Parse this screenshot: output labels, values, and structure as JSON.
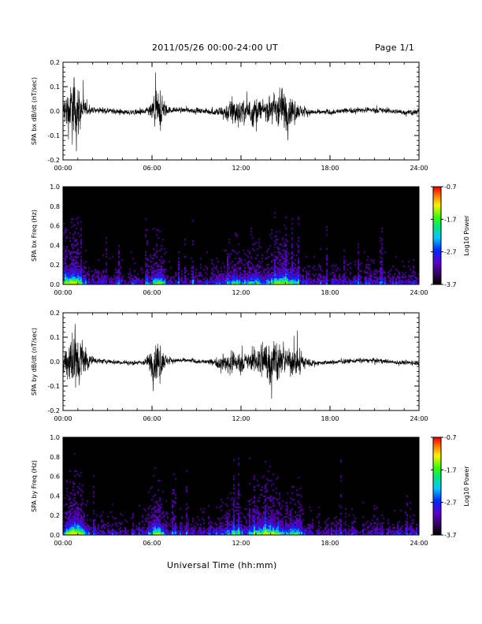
{
  "header": {
    "title": "2011/05/26  00:00-24:00 UT",
    "page": "Page 1/1"
  },
  "xaxis_label": "Universal Time (hh:mm)",
  "chart_data": [
    {
      "type": "line",
      "ylabel": "SPA bx dB/dt (nT/sec)",
      "ylim": [
        -0.2,
        0.2
      ],
      "yticks": [
        "-0.2",
        "-0.1",
        "0.0",
        "0.1",
        "0.2"
      ],
      "xticks": [
        "00:00",
        "06:00",
        "12:00",
        "18:00",
        "24:00"
      ],
      "xlim_hours": [
        0,
        24
      ],
      "activity_bursts_hours": [
        {
          "center": 0.7,
          "width": 0.6,
          "amp": 0.3
        },
        {
          "center": 6.4,
          "width": 0.45,
          "amp": 0.17
        },
        {
          "center": 11.7,
          "width": 0.9,
          "amp": 0.12
        },
        {
          "center": 12.9,
          "width": 0.7,
          "amp": 0.12
        },
        {
          "center": 14.7,
          "width": 1.0,
          "amp": 0.2
        }
      ],
      "baseline_amp": 0.025
    },
    {
      "type": "heatmap",
      "ylabel": "SPA bx Freq (Hz)",
      "ylim": [
        0.0,
        1.0
      ],
      "yticks": [
        "0.0",
        "0.2",
        "0.4",
        "0.6",
        "0.8",
        "1.0"
      ],
      "xticks": [
        "00:00",
        "06:00",
        "12:00",
        "18:00",
        "24:00"
      ],
      "xlim_hours": [
        0,
        24
      ],
      "colorbar": {
        "label": "Log10 Power",
        "ticks": [
          "-0.7",
          "-1.7",
          "-2.7",
          "-3.7"
        ],
        "range": [
          -3.7,
          -0.7
        ]
      }
    },
    {
      "type": "line",
      "ylabel": "SPA by dB/dt (nT/sec)",
      "ylim": [
        -0.2,
        0.2
      ],
      "yticks": [
        "-0.2",
        "-0.1",
        "0.0",
        "0.1",
        "0.2"
      ],
      "xticks": [
        "00:00",
        "06:00",
        "12:00",
        "18:00",
        "24:00"
      ],
      "xlim_hours": [
        0,
        24
      ],
      "activity_bursts_hours": [
        {
          "center": 0.8,
          "width": 0.7,
          "amp": 0.3
        },
        {
          "center": 6.3,
          "width": 0.5,
          "amp": 0.2
        },
        {
          "center": 11.5,
          "width": 1.0,
          "amp": 0.1
        },
        {
          "center": 13.9,
          "width": 1.2,
          "amp": 0.22
        },
        {
          "center": 15.6,
          "width": 0.8,
          "amp": 0.12
        }
      ],
      "baseline_amp": 0.02
    },
    {
      "type": "heatmap",
      "ylabel": "SPA by Freq (Hz)",
      "ylim": [
        0.0,
        1.0
      ],
      "yticks": [
        "0.0",
        "0.2",
        "0.4",
        "0.6",
        "0.8",
        "1.0"
      ],
      "xticks": [
        "00:00",
        "06:00",
        "12:00",
        "18:00",
        "24:00"
      ],
      "xlim_hours": [
        0,
        24
      ],
      "colorbar": {
        "label": "Log10 Power",
        "ticks": [
          "-0.7",
          "-1.7",
          "-2.7",
          "-3.7"
        ],
        "range": [
          -3.7,
          -0.7
        ]
      }
    }
  ]
}
